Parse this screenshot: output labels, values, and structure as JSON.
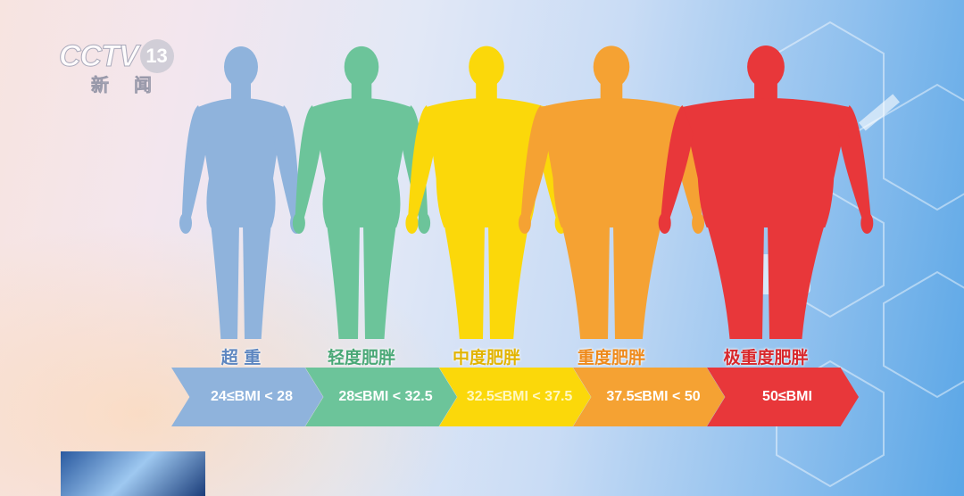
{
  "logo": {
    "brand": "CCTV",
    "channel": "13",
    "subtitle": "新闻"
  },
  "categories": [
    {
      "label": "超 重",
      "range": "24≤BMI < 28",
      "color": "#8fb3dc",
      "text_color": "#5d86c0",
      "body_width": 1.0
    },
    {
      "label": "轻度肥胖",
      "range": "28≤BMI < 32.5",
      "color": "#6cc49a",
      "text_color": "#4aa877",
      "body_width": 1.15
    },
    {
      "label": "中度肥胖",
      "range": "32.5≤BMI < 37.5",
      "color": "#fbd80a",
      "text_color": "#e2b400",
      "body_width": 1.4
    },
    {
      "label": "重度肥胖",
      "range": "37.5≤BMI < 50",
      "color": "#f5a233",
      "text_color": "#ee8a1c",
      "body_width": 1.65
    },
    {
      "label": "极重度肥胖",
      "range": "50≤BMI",
      "color": "#e8373a",
      "text_color": "#d8282c",
      "body_width": 1.95
    }
  ]
}
